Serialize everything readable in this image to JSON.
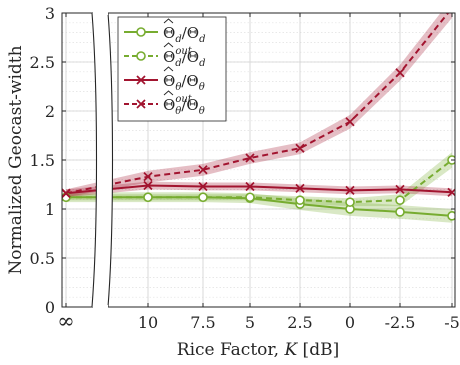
{
  "chart_data": {
    "type": "line",
    "xlabel": "Rice Factor, K [dB]",
    "ylabel": "Normalized Geocast-width",
    "x_tick_labels": [
      "∞",
      "10",
      "7.5",
      "5",
      "2.5",
      "0",
      "-2.5",
      "-5"
    ],
    "y_ticks": [
      0,
      0.5,
      1,
      1.5,
      2,
      2.5,
      3
    ],
    "y_tick_labels": [
      "0",
      "0.5",
      "1",
      "1.5",
      "2",
      "2.5",
      "3"
    ],
    "ylim": [
      0,
      3
    ],
    "axis_break": "between ∞ and 10",
    "grid": true,
    "legend_position": "top-left",
    "series": [
      {
        "name": "Θ̂d/Θd",
        "color": "#77AC30",
        "linestyle": "solid",
        "marker": "circle",
        "points": [
          [
            null,
            1.12
          ],
          [
            10,
            1.12
          ],
          [
            7.5,
            1.12
          ],
          [
            5,
            1.11
          ],
          [
            2.5,
            1.05
          ],
          [
            0,
            1.0
          ],
          [
            -2.5,
            0.97
          ],
          [
            -5,
            0.93
          ]
        ],
        "band": [
          0.05,
          0.05,
          0.05,
          0.05,
          0.06,
          0.07,
          0.07,
          0.07
        ]
      },
      {
        "name": "Θ̂d^out/Θd",
        "color": "#77AC30",
        "linestyle": "dashed",
        "marker": "circle-open",
        "points": [
          [
            null,
            1.12
          ],
          [
            10,
            1.12
          ],
          [
            7.5,
            1.12
          ],
          [
            5,
            1.12
          ],
          [
            2.5,
            1.09
          ],
          [
            0,
            1.07
          ],
          [
            -2.5,
            1.09
          ],
          [
            -5,
            1.5
          ]
        ],
        "band": [
          0.03,
          0.03,
          0.03,
          0.03,
          0.04,
          0.04,
          0.06,
          0.08
        ]
      },
      {
        "name": "Θ̂θ/Θθ",
        "color": "#A2142F",
        "linestyle": "solid",
        "marker": "x",
        "points": [
          [
            null,
            1.16
          ],
          [
            10,
            1.24
          ],
          [
            7.5,
            1.23
          ],
          [
            5,
            1.23
          ],
          [
            2.5,
            1.21
          ],
          [
            0,
            1.19
          ],
          [
            -2.5,
            1.2
          ],
          [
            -5,
            1.17
          ]
        ],
        "band": [
          0.04,
          0.04,
          0.04,
          0.04,
          0.04,
          0.04,
          0.04,
          0.04
        ]
      },
      {
        "name": "Θ̂θ^out/Θθ",
        "color": "#A2142F",
        "linestyle": "dashed",
        "marker": "x",
        "points": [
          [
            null,
            1.16
          ],
          [
            10,
            1.33
          ],
          [
            7.5,
            1.4
          ],
          [
            5,
            1.52
          ],
          [
            2.5,
            1.62
          ],
          [
            0,
            1.89
          ],
          [
            -2.5,
            2.39
          ],
          [
            -5,
            3.05
          ]
        ],
        "band": [
          0.04,
          0.06,
          0.06,
          0.06,
          0.06,
          0.07,
          0.08,
          0.1
        ]
      }
    ],
    "legend_html": [
      {
        "base": "Θ",
        "sub": "d",
        "sup": "",
        "den": "Θ",
        "den_sub": "d"
      },
      {
        "base": "Θ",
        "sub": "d",
        "sup": "out",
        "den": "Θ",
        "den_sub": "d"
      },
      {
        "base": "Θ",
        "sub": "θ",
        "sup": "",
        "den": "Θ",
        "den_sub": "θ"
      },
      {
        "base": "Θ",
        "sub": "θ",
        "sup": "out",
        "den": "Θ",
        "den_sub": "θ"
      }
    ]
  }
}
